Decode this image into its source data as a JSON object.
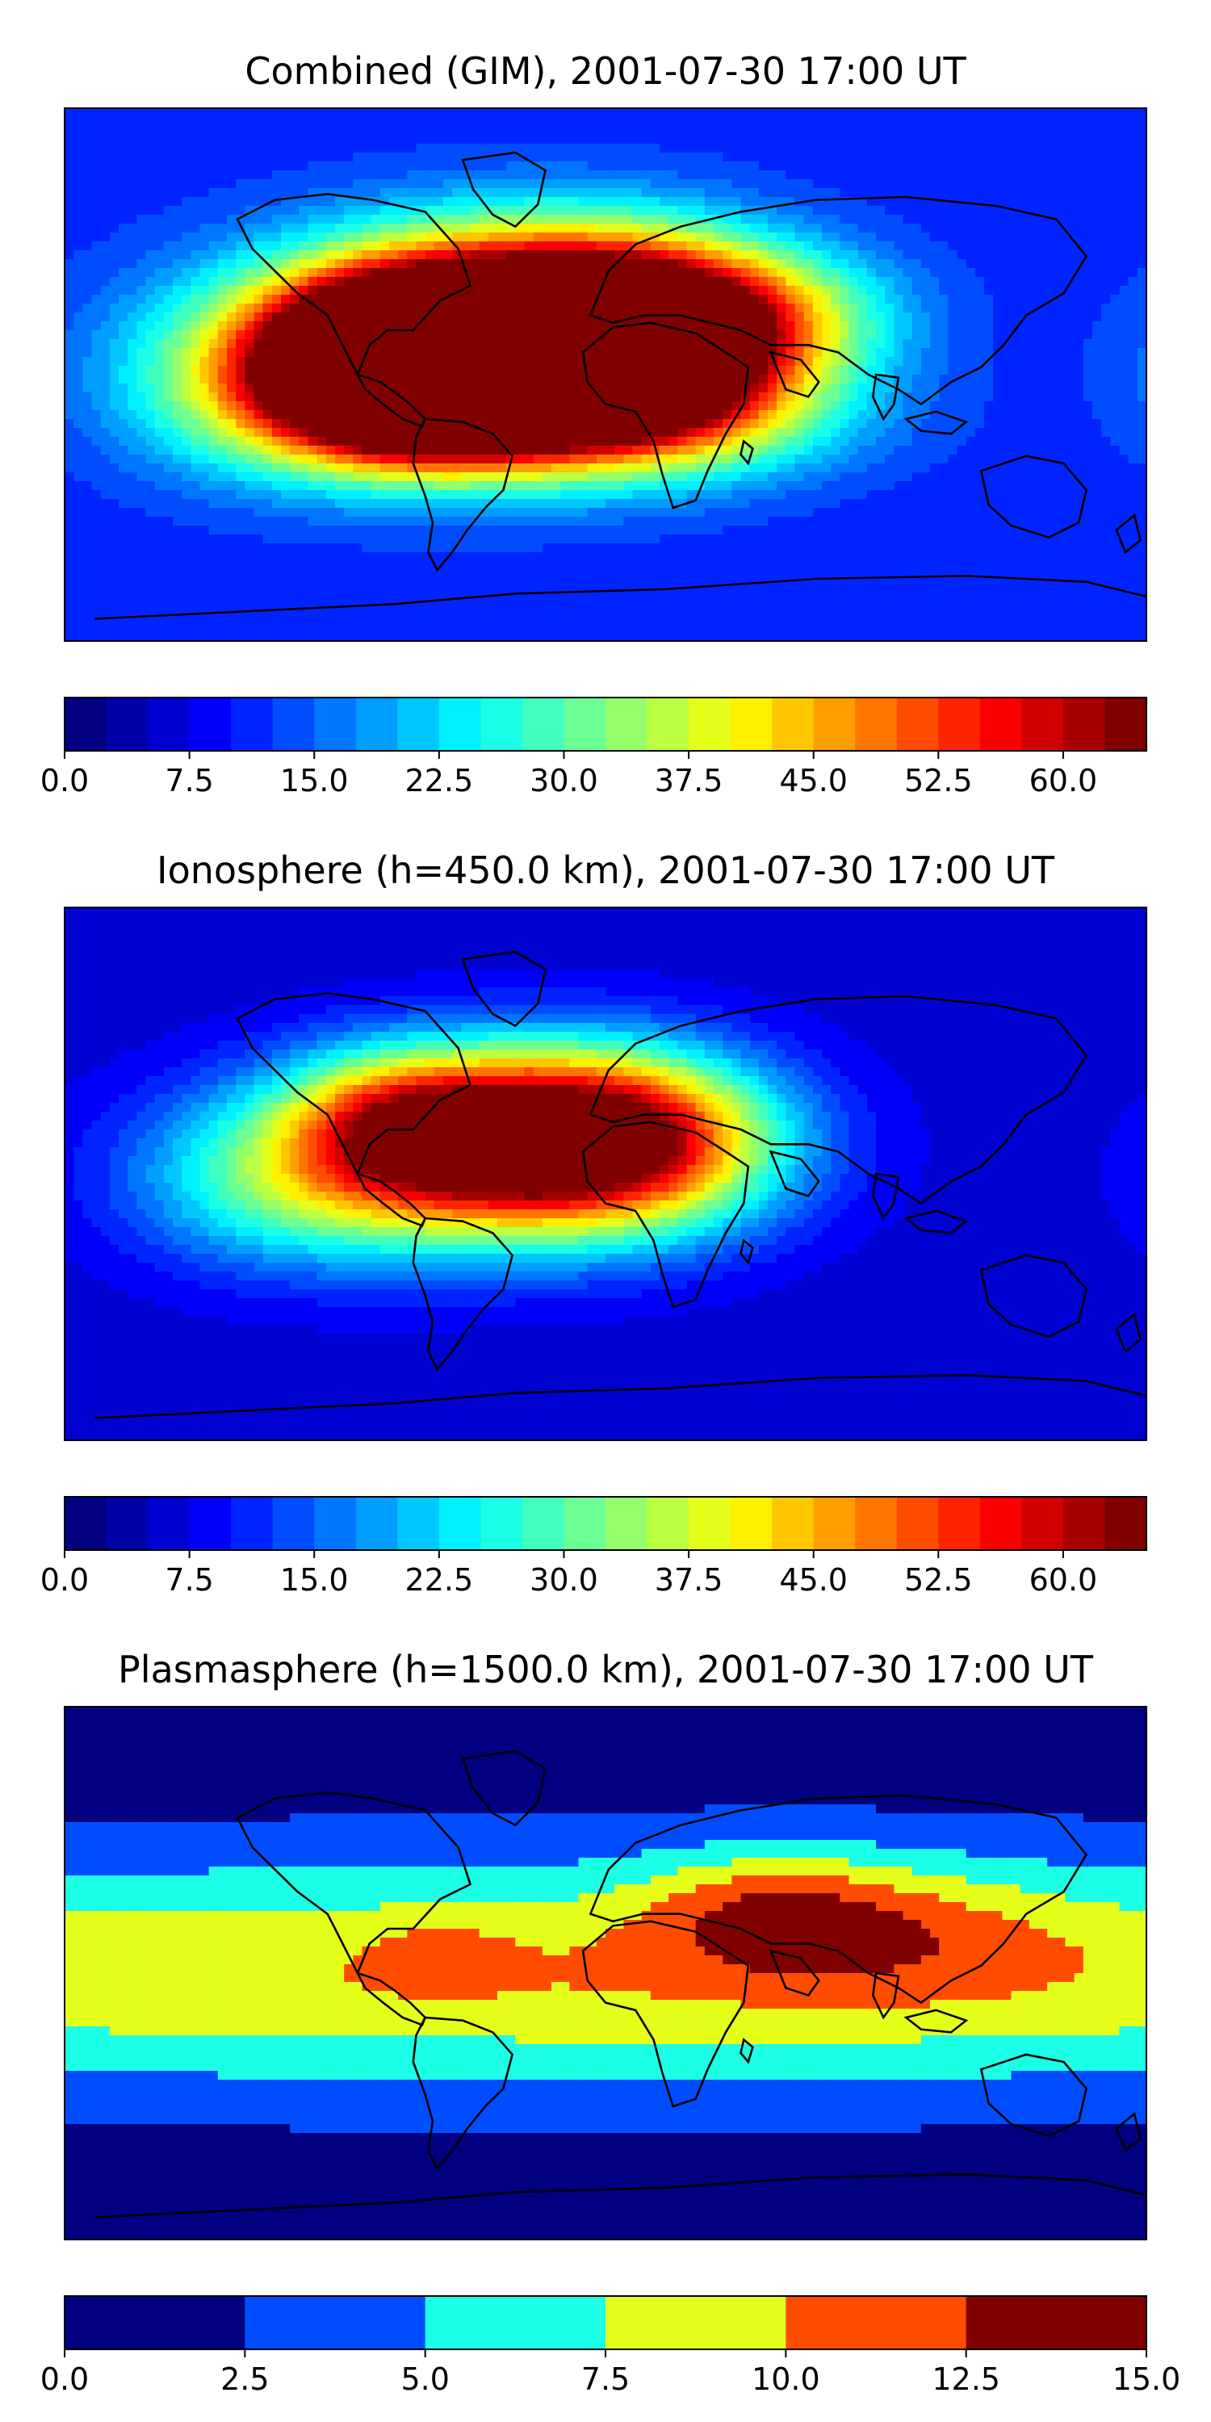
{
  "chart_data": [
    {
      "type": "heatmap",
      "title": "Combined (GIM), 2001-07-30 17:00 UT",
      "basemap": "world coastlines (equirectangular)",
      "colormap": "jet",
      "colorbar": {
        "levels": [
          0.0,
          2.5,
          5.0,
          7.5,
          10.0,
          12.5,
          15.0,
          17.5,
          20.0,
          22.5,
          25.0,
          27.5,
          30.0,
          32.5,
          35.0,
          37.5,
          40.0,
          42.5,
          45.0,
          47.5,
          50.0,
          52.5,
          55.0,
          57.5,
          60.0,
          62.5,
          65.0
        ],
        "tick_labels": [
          "0.0",
          "7.5",
          "15.0",
          "22.5",
          "30.0",
          "37.5",
          "45.0",
          "52.5",
          "60.0"
        ],
        "tick_values": [
          0.0,
          7.5,
          15.0,
          22.5,
          30.0,
          37.5,
          45.0,
          52.5,
          60.0
        ]
      },
      "features": [
        {
          "lon": -15,
          "lat": 15,
          "value": 58,
          "sx": 45,
          "sy": 22
        },
        {
          "lon": -45,
          "lat": 8,
          "value": 52,
          "sx": 55,
          "sy": 24
        },
        {
          "lon": -65,
          "lat": -5,
          "value": 52,
          "sx": 30,
          "sy": 16
        },
        {
          "lon": -75,
          "lat": 15,
          "value": 25,
          "sx": 25,
          "sy": 14
        },
        {
          "lon": 20,
          "lat": 12,
          "value": 30,
          "sx": 30,
          "sy": 20
        },
        {
          "lon": 0,
          "lat": -15,
          "value": 22,
          "sx": 50,
          "sy": 14
        },
        {
          "lon": -110,
          "lat": -5,
          "value": 16,
          "sx": 35,
          "sy": 20
        },
        {
          "lon": 60,
          "lat": 20,
          "value": 12,
          "sx": 30,
          "sy": 15
        }
      ],
      "base_value": 11
    },
    {
      "type": "heatmap",
      "title": "Ionosphere  (h=450.0 km), 2001-07-30 17:00 UT",
      "basemap": "world coastlines (equirectangular)",
      "colormap": "jet",
      "colorbar": {
        "levels": [
          0.0,
          2.5,
          5.0,
          7.5,
          10.0,
          12.5,
          15.0,
          17.5,
          20.0,
          22.5,
          25.0,
          27.5,
          30.0,
          32.5,
          35.0,
          37.5,
          40.0,
          42.5,
          45.0,
          47.5,
          50.0,
          52.5,
          55.0,
          57.5,
          60.0,
          62.5,
          65.0
        ],
        "tick_labels": [
          "0.0",
          "7.5",
          "15.0",
          "22.5",
          "30.0",
          "37.5",
          "45.0",
          "52.5",
          "60.0"
        ],
        "tick_values": [
          0.0,
          7.5,
          15.0,
          22.5,
          30.0,
          37.5,
          45.0,
          52.5,
          60.0
        ]
      },
      "features": [
        {
          "lon": -15,
          "lat": 15,
          "value": 40,
          "sx": 42,
          "sy": 20
        },
        {
          "lon": -45,
          "lat": 5,
          "value": 38,
          "sx": 55,
          "sy": 22
        },
        {
          "lon": -70,
          "lat": 20,
          "value": 18,
          "sx": 25,
          "sy": 16
        },
        {
          "lon": 15,
          "lat": 10,
          "value": 15,
          "sx": 30,
          "sy": 20
        },
        {
          "lon": -110,
          "lat": -5,
          "value": 12,
          "sx": 35,
          "sy": 20
        }
      ],
      "base_value": 6
    },
    {
      "type": "heatmap",
      "title": "Plasmasphere (h=1500.0 km), 2001-07-30 17:00 UT",
      "basemap": "world coastlines (equirectangular)",
      "colormap": "jet (6 discrete levels)",
      "colorbar": {
        "levels": [
          0.0,
          2.5,
          5.0,
          7.5,
          10.0,
          12.5,
          15.0
        ],
        "tick_labels": [
          "0.0",
          "2.5",
          "5.0",
          "7.5",
          "10.0",
          "12.5",
          "15.0"
        ],
        "tick_values": [
          0.0,
          2.5,
          5.0,
          7.5,
          10.0,
          12.5,
          15.0
        ]
      },
      "features": [
        {
          "lon": 0,
          "lat": 0,
          "value": 9,
          "sx": 400,
          "sy": 28
        },
        {
          "lon": 55,
          "lat": 22,
          "value": 5,
          "sx": 30,
          "sy": 14
        },
        {
          "lon": 100,
          "lat": 15,
          "value": 3,
          "sx": 40,
          "sy": 16
        },
        {
          "lon": -55,
          "lat": 5,
          "value": 2.5,
          "sx": 15,
          "sy": 8
        }
      ],
      "base_value": 1
    }
  ],
  "colors": {
    "coastline": "#000000",
    "colormap_stops": [
      "#00007f",
      "#0000ff",
      "#007fff",
      "#00ffff",
      "#7fff7f",
      "#ffff00",
      "#ff7f00",
      "#ff0000",
      "#7f0000"
    ]
  }
}
